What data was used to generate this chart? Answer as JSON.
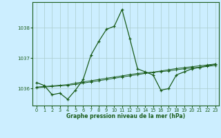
{
  "title": "Graphe pression niveau de la mer (hPa)",
  "background_color": "#cceeff",
  "grid_color": "#aacccc",
  "line_color": "#1a5c1a",
  "xlim": [
    -0.5,
    23.5
  ],
  "ylim": [
    1035.45,
    1038.85
  ],
  "yticks": [
    1036,
    1037,
    1038
  ],
  "xticks": [
    0,
    1,
    2,
    3,
    4,
    5,
    6,
    7,
    8,
    9,
    10,
    11,
    12,
    13,
    14,
    15,
    16,
    17,
    18,
    19,
    20,
    21,
    22,
    23
  ],
  "series1": [
    1036.2,
    1036.1,
    1035.8,
    1035.85,
    1035.65,
    1035.95,
    1036.3,
    1037.1,
    1037.55,
    1037.95,
    1038.05,
    1038.6,
    1037.65,
    1036.65,
    1036.55,
    1036.45,
    1035.95,
    1036.0,
    1036.45,
    1036.55,
    1036.65,
    1036.7,
    1036.75,
    1036.8
  ],
  "series2": [
    1036.05,
    1036.07,
    1036.09,
    1036.11,
    1036.13,
    1036.18,
    1036.22,
    1036.26,
    1036.3,
    1036.34,
    1036.38,
    1036.42,
    1036.46,
    1036.5,
    1036.52,
    1036.54,
    1036.56,
    1036.58,
    1036.62,
    1036.65,
    1036.68,
    1036.7,
    1036.73,
    1036.76
  ],
  "series3": [
    1036.03,
    1036.05,
    1036.07,
    1036.09,
    1036.11,
    1036.14,
    1036.18,
    1036.22,
    1036.26,
    1036.3,
    1036.34,
    1036.38,
    1036.42,
    1036.46,
    1036.5,
    1036.54,
    1036.58,
    1036.62,
    1036.66,
    1036.69,
    1036.72,
    1036.75,
    1036.78,
    1036.81
  ]
}
